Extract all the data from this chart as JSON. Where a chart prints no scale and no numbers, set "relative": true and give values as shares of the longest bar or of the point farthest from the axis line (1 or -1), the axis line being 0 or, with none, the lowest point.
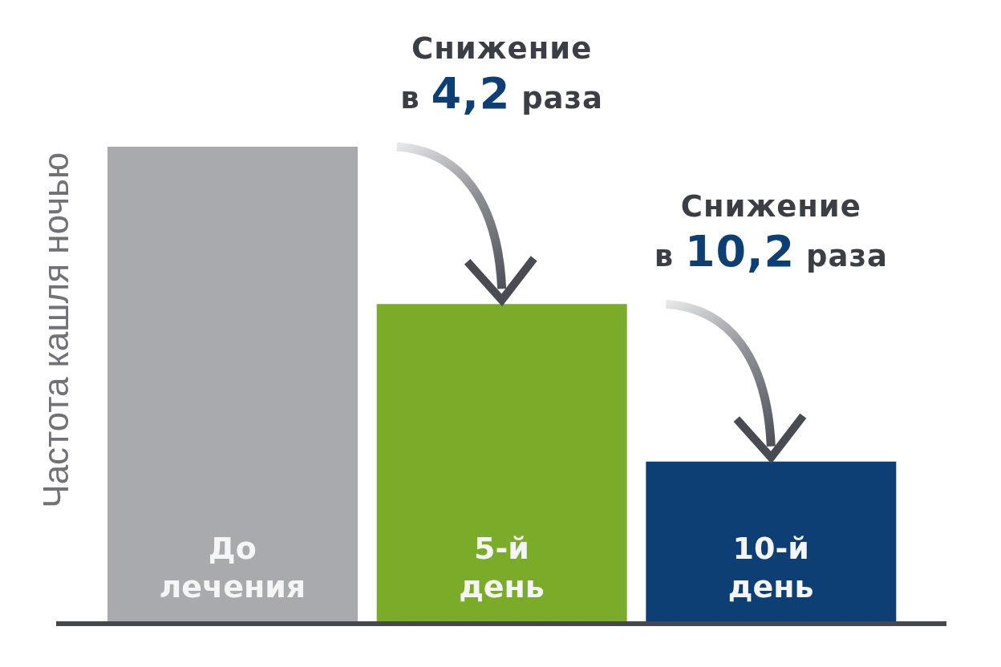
{
  "chart_data": {
    "type": "bar",
    "ylabel": "Частота кашля ночью",
    "categories": [
      "До лечения",
      "5-й день",
      "10-й день"
    ],
    "values": [
      1,
      0.67,
      0.34
    ],
    "colors": [
      "#a8aaad",
      "#7aac2a",
      "#0d3f74"
    ],
    "relative": true,
    "annotations": [
      "Снижение в 4,2 раза",
      "Снижение в 10,2 раза"
    ]
  }
}
